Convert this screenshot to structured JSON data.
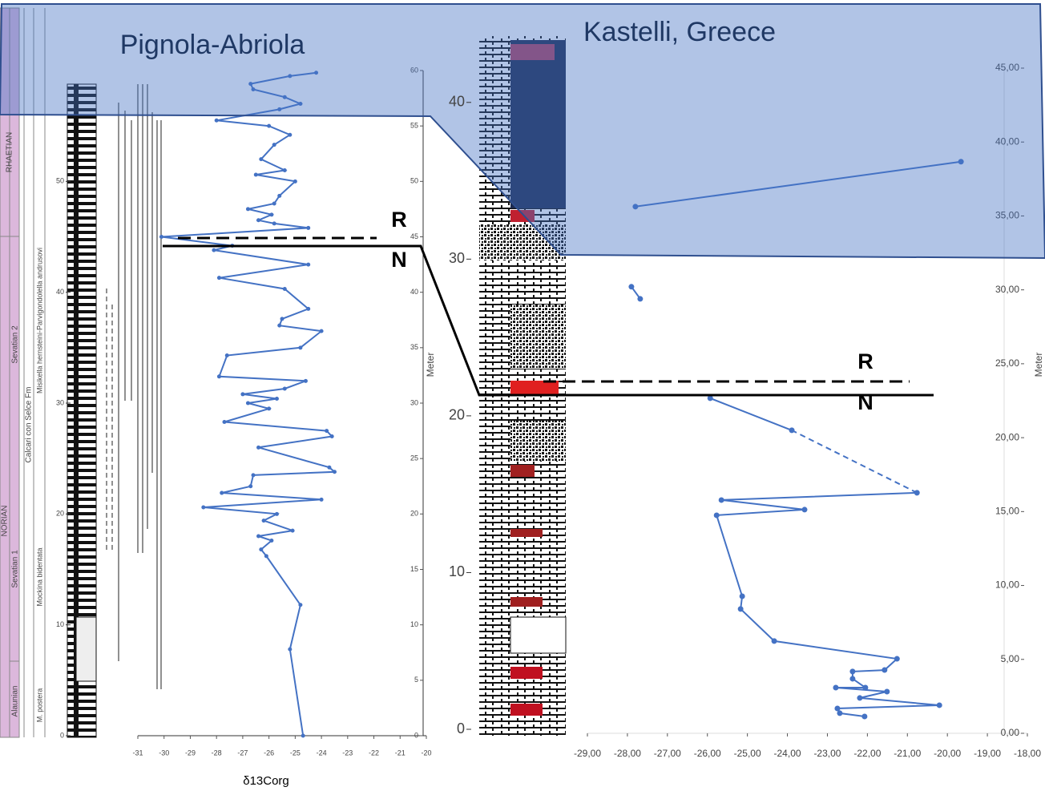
{
  "chart_data": [
    {
      "type": "line",
      "xlabel": "δ13Corg",
      "ylabel": "Meter",
      "xlim": [
        -31,
        -20
      ],
      "xticks": [
        -31,
        -30,
        -29,
        -28,
        -27,
        -26,
        -25,
        -24,
        -23,
        -22,
        -21,
        -20
      ],
      "ylim": [
        0,
        60
      ],
      "yticks": [
        0,
        5,
        10,
        15,
        20,
        25,
        30,
        35,
        40,
        45,
        50,
        55,
        60
      ],
      "y2lim": [
        0,
        60
      ],
      "y2ticks": [
        0,
        10,
        20,
        30,
        40,
        50
      ],
      "series": [
        {
          "color": "#4472c4",
          "x": [
            -24.7,
            -25.2,
            -24.8,
            -26.1,
            -26.3,
            -25.9,
            -26.4,
            -25.1,
            -26.2,
            -25.7,
            -28.5,
            -24.0,
            -27.8,
            -26.7,
            -26.6,
            -23.5,
            -23.7,
            -26.4,
            -23.6,
            -23.8,
            -27.7,
            -26.0,
            -26.8,
            -25.7,
            -27.0,
            -25.4,
            -24.6,
            -27.9,
            -27.6,
            -24.8,
            -24.0,
            -25.6,
            -25.5,
            -24.5,
            -25.4,
            -27.9,
            -24.5,
            -28.1,
            -27.4,
            -30.1,
            -24.5,
            -25.8,
            -26.4,
            -25.9,
            -26.8,
            -25.8,
            -25.6,
            -25.0,
            -26.5,
            -25.4,
            -26.3,
            -25.8,
            -25.2,
            -26.0,
            -28.0,
            -25.6,
            -24.8,
            -25.4,
            -26.6,
            -26.7,
            -25.2,
            -24.2
          ],
          "values": [
            0,
            7.8,
            11.8,
            16.2,
            16.8,
            17.6,
            18.0,
            18.5,
            19.4,
            20.0,
            20.6,
            21.3,
            21.9,
            22.5,
            23.5,
            23.8,
            24.2,
            26.0,
            27.0,
            27.5,
            28.3,
            29.5,
            30.0,
            30.4,
            30.8,
            31.3,
            32.0,
            32.4,
            34.3,
            35.0,
            36.5,
            37.0,
            37.6,
            38.5,
            40.3,
            41.3,
            42.5,
            43.8,
            44.2,
            45.0,
            45.8,
            46.2,
            46.5,
            47.0,
            47.5,
            48.0,
            48.7,
            50.0,
            50.6,
            51.0,
            52.0,
            53.3,
            54.2,
            55.0,
            55.5,
            56.5,
            57.0,
            57.6,
            58.3,
            58.8,
            59.5,
            59.8
          ]
        }
      ]
    },
    {
      "type": "line",
      "ylabel": "Meter",
      "xlim": [
        -29,
        -18
      ],
      "xticks": [
        {
          "value": -29,
          "label": "-29,00"
        },
        {
          "value": -28,
          "label": "-28,00"
        },
        {
          "value": -27,
          "label": "-27,00"
        },
        {
          "value": -26,
          "label": "-26,00"
        },
        {
          "value": -25,
          "label": "-25,00"
        },
        {
          "value": -24,
          "label": "-24,00"
        },
        {
          "value": -23,
          "label": "-23,00"
        },
        {
          "value": -22,
          "label": "-22,00"
        },
        {
          "value": -21,
          "label": "-21,00"
        },
        {
          "value": -20,
          "label": "-20,00"
        },
        {
          "value": -19,
          "label": "-19,00"
        },
        {
          "value": -18,
          "label": "-18,00"
        }
      ],
      "ylim": [
        0,
        45
      ],
      "yticks": [
        {
          "value": 0,
          "label": "0,00"
        },
        {
          "value": 5,
          "label": "5,00"
        },
        {
          "value": 10,
          "label": "10,00"
        },
        {
          "value": 15,
          "label": "15,00"
        },
        {
          "value": 20,
          "label": "20,00"
        },
        {
          "value": 25,
          "label": "25,00"
        },
        {
          "value": 30,
          "label": "30,00"
        },
        {
          "value": 35,
          "label": "35,00"
        },
        {
          "value": 40,
          "label": "40,00"
        },
        {
          "value": 45,
          "label": "45,00"
        }
      ],
      "y2lim": [
        0,
        45
      ],
      "y2ticks": [
        0,
        10,
        20,
        30,
        40
      ],
      "series": [
        {
          "color": "#4472c4",
          "dash": false,
          "x": [
            -22.07,
            -22.69,
            -22.75,
            -20.2,
            -22.19,
            -21.51,
            -22.79,
            -22.05,
            -22.37,
            -22.37,
            -21.57,
            -21.26,
            -24.33,
            -25.17,
            -25.13,
            -25.77,
            -23.57,
            -25.65,
            -20.76,
            null,
            -23.89,
            -25.93,
            null,
            -27.9,
            -27.68,
            null,
            -27.8,
            -19.66
          ],
          "values": [
            1.14,
            1.36,
            1.68,
            1.9,
            2.39,
            2.82,
            3.09,
            3.09,
            3.69,
            4.18,
            4.28,
            5.04,
            6.24,
            8.41,
            9.27,
            14.75,
            15.13,
            15.78,
            16.27,
            null,
            20.5,
            22.67,
            null,
            30.21,
            29.39,
            null,
            35.63,
            38.67
          ]
        },
        {
          "color": "#4472c4",
          "dash": true,
          "x": [
            -20.76,
            -23.89
          ],
          "values": [
            16.27,
            20.5
          ]
        }
      ]
    }
  ],
  "overlay": {
    "sites": [
      "Pignola-Abriola",
      "Kastelli, Greece"
    ],
    "boundary_labels": [
      "R",
      "N",
      "R",
      "N"
    ]
  },
  "stratigraphy": {
    "stages": [
      "RHAETIAN",
      "NORIAN"
    ],
    "substages": [
      "Sevatian 2",
      "Sevatian 1",
      "Alaunian"
    ],
    "formation": "Calcari con Selce Fm",
    "zones": [
      "Misikella hernsteini-Parvigondolella andrusovi",
      "Mockina bidentata",
      "M. postera"
    ]
  }
}
